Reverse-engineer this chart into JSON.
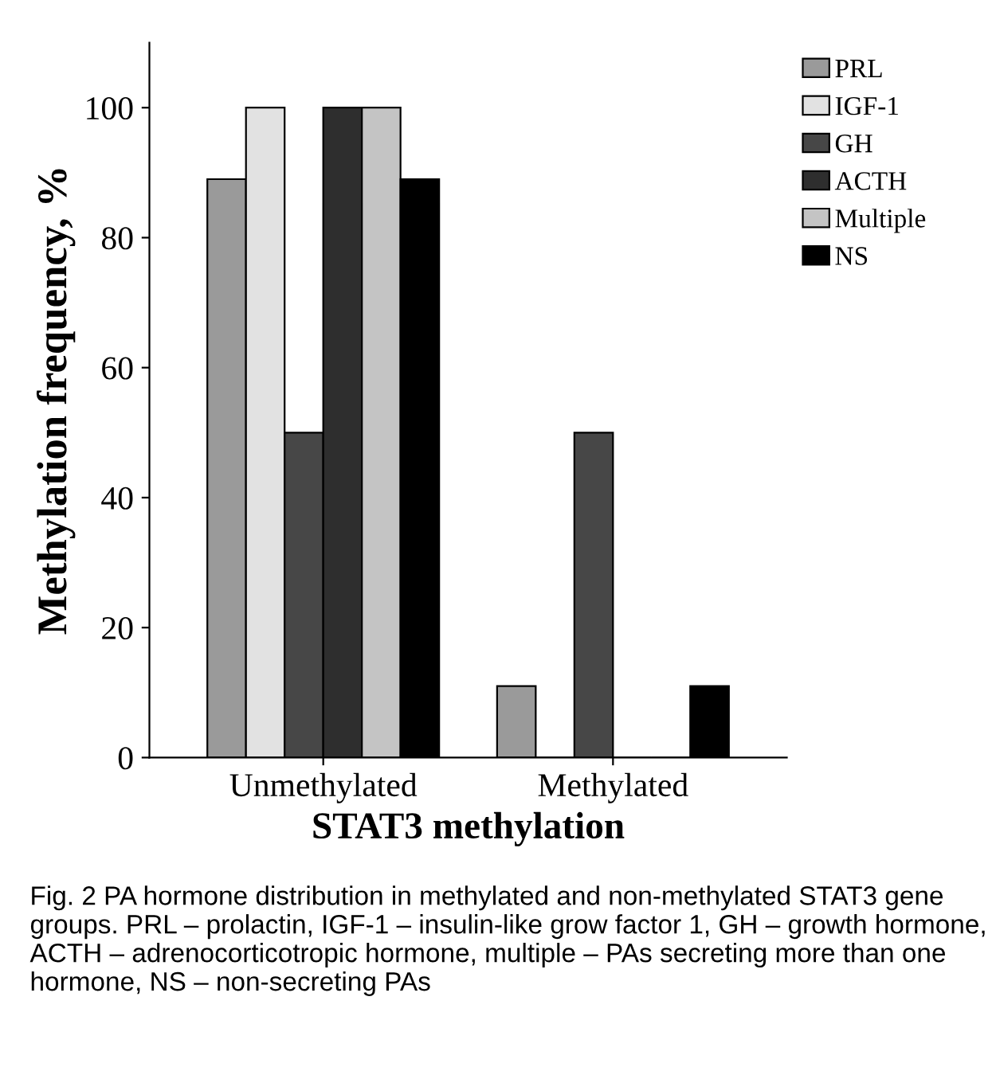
{
  "chart_data": {
    "type": "bar",
    "xlabel": "STAT3 methylation",
    "ylabel": "Methylation frequency, %",
    "categories": [
      "Unmethylated",
      "Methylated"
    ],
    "series": [
      {
        "name": "PRL",
        "color": "#9a9a9a",
        "values": [
          89,
          11
        ]
      },
      {
        "name": "IGF-1",
        "color": "#e2e2e2",
        "values": [
          100,
          0
        ]
      },
      {
        "name": "GH",
        "color": "#474747",
        "values": [
          50,
          50
        ]
      },
      {
        "name": "ACTH",
        "color": "#2e2e2e",
        "values": [
          100,
          0
        ]
      },
      {
        "name": "Multiple",
        "color": "#c4c4c4",
        "values": [
          100,
          0
        ]
      },
      {
        "name": "NS",
        "color": "#000000",
        "values": [
          89,
          11
        ]
      }
    ],
    "ylim": [
      0,
      110
    ],
    "yticks": [
      0,
      20,
      40,
      60,
      80,
      100
    ],
    "grid": false,
    "legend": "top right",
    "annotations": [
      "Fig. 2 PA hormone distribution in methylated and non-methylated STAT3 gene groups. PRL – prolactin, IGF-1 – insulin-like grow factor 1, GH – growth hormone, ACTH – adrenocorticotropic hormone, multiple – PAs secreting more than one hormone, NS – non-secreting PAs"
    ]
  }
}
